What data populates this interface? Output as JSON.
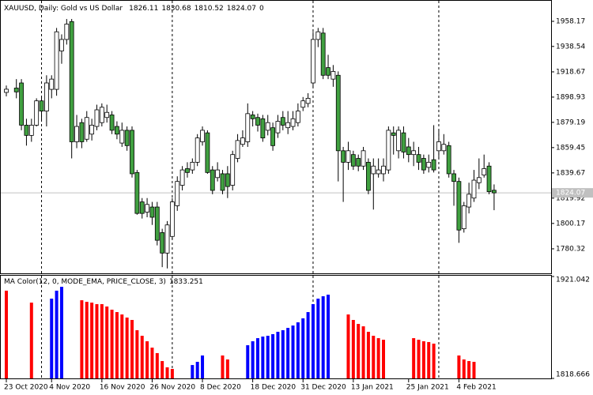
{
  "chart_data": [
    {
      "type": "candlestick",
      "title": "XAUUSD, Daily: Gold vs US Dollar",
      "header_values": [
        1826.11,
        1830.68,
        1810.52,
        1824.07,
        0
      ],
      "categories": [
        "23 Oct 2020",
        null,
        null,
        null,
        null,
        null,
        null,
        null,
        null,
        "4 Nov 2020",
        null,
        null,
        null,
        null,
        null,
        null,
        null,
        null,
        null,
        "16 Nov 2020",
        null,
        null,
        null,
        null,
        null,
        null,
        null,
        null,
        null,
        "26 Nov 2020",
        null,
        null,
        null,
        null,
        null,
        null,
        null,
        null,
        null,
        "8 Dec 2020",
        null,
        null,
        null,
        null,
        null,
        null,
        null,
        null,
        null,
        "18 Dec 2020",
        null,
        null,
        null,
        null,
        null,
        null,
        null,
        null,
        null,
        "31 Dec 2020",
        null,
        null,
        null,
        null,
        null,
        null,
        null,
        null,
        null,
        "13 Jan 2021",
        null,
        null,
        null,
        null,
        null,
        null,
        null,
        null,
        null,
        null,
        "25 Jan 2021",
        null,
        null,
        null,
        null,
        null,
        null,
        null,
        null,
        null,
        "4 Feb 2021",
        null,
        null,
        null,
        null,
        null,
        null,
        null
      ],
      "candles": [
        {
          "o": 1902.6,
          "h": 1908,
          "l": 1899.5,
          "c": 1905.1
        },
        null,
        {
          "o": 1906,
          "h": 1913,
          "l": 1898,
          "c": 1903
        },
        {
          "o": 1910,
          "h": 1913,
          "l": 1873,
          "c": 1877
        },
        {
          "o": 1877,
          "h": 1882,
          "l": 1861,
          "c": 1869
        },
        {
          "o": 1869,
          "h": 1882,
          "l": 1864,
          "c": 1877
        },
        {
          "o": 1877,
          "h": 1898,
          "l": 1876,
          "c": 1896
        },
        {
          "o": 1896,
          "h": 1900,
          "l": 1880,
          "c": 1888
        },
        {
          "o": 1888,
          "h": 1916,
          "l": 1876,
          "c": 1910
        },
        {
          "o": 1905,
          "h": 1916,
          "l": 1898,
          "c": 1913
        },
        {
          "o": 1905,
          "h": 1953,
          "l": 1900,
          "c": 1950
        },
        {
          "o": 1935,
          "h": 1948,
          "l": 1925,
          "c": 1944
        },
        {
          "o": 1944,
          "h": 1960,
          "l": 1940,
          "c": 1956
        },
        {
          "o": 1958,
          "h": 1960,
          "l": 1851,
          "c": 1864
        },
        {
          "o": 1864,
          "h": 1885,
          "l": 1859,
          "c": 1876
        },
        {
          "o": 1879,
          "h": 1882,
          "l": 1859,
          "c": 1864
        },
        {
          "o": 1866,
          "h": 1888,
          "l": 1864,
          "c": 1883
        },
        {
          "o": 1870,
          "h": 1882,
          "l": 1865,
          "c": 1877
        },
        {
          "o": 1876,
          "h": 1893,
          "l": 1873,
          "c": 1889
        },
        {
          "o": 1879,
          "h": 1894,
          "l": 1876,
          "c": 1891
        },
        {
          "o": 1883,
          "h": 1893,
          "l": 1879,
          "c": 1887
        },
        {
          "o": 1885,
          "h": 1888,
          "l": 1870,
          "c": 1873
        },
        {
          "o": 1876,
          "h": 1880,
          "l": 1866,
          "c": 1870
        },
        {
          "o": 1863,
          "h": 1879,
          "l": 1860,
          "c": 1873
        },
        {
          "o": 1873,
          "h": 1876,
          "l": 1857,
          "c": 1861
        },
        {
          "o": 1873,
          "h": 1876,
          "l": 1836,
          "c": 1839
        },
        {
          "o": 1840,
          "h": 1842,
          "l": 1807,
          "c": 1808
        },
        {
          "o": 1817,
          "h": 1820,
          "l": 1804,
          "c": 1808
        },
        {
          "o": 1809,
          "h": 1820,
          "l": 1805,
          "c": 1815
        },
        {
          "o": 1813,
          "h": 1817,
          "l": 1799,
          "c": 1805
        },
        {
          "o": 1813,
          "h": 1817,
          "l": 1783,
          "c": 1787
        },
        {
          "o": 1793,
          "h": 1796,
          "l": 1766,
          "c": 1777
        },
        {
          "o": 1777,
          "h": 1802,
          "l": 1765,
          "c": 1799
        },
        {
          "o": 1790,
          "h": 1820,
          "l": 1788,
          "c": 1817
        },
        {
          "o": 1814,
          "h": 1837,
          "l": 1810,
          "c": 1833
        },
        {
          "o": 1830,
          "h": 1845,
          "l": 1826,
          "c": 1842
        },
        {
          "o": 1843,
          "h": 1848,
          "l": 1836,
          "c": 1840
        },
        {
          "o": 1842,
          "h": 1851,
          "l": 1839,
          "c": 1848
        },
        {
          "o": 1848,
          "h": 1870,
          "l": 1845,
          "c": 1867
        },
        {
          "o": 1864,
          "h": 1876,
          "l": 1861,
          "c": 1873
        },
        {
          "o": 1871,
          "h": 1873,
          "l": 1839,
          "c": 1840
        },
        {
          "o": 1842,
          "h": 1845,
          "l": 1823,
          "c": 1826
        },
        {
          "o": 1836,
          "h": 1848,
          "l": 1833,
          "c": 1842
        },
        {
          "o": 1839,
          "h": 1842,
          "l": 1823,
          "c": 1826
        },
        {
          "o": 1839,
          "h": 1845,
          "l": 1820,
          "c": 1829
        },
        {
          "o": 1830,
          "h": 1857,
          "l": 1826,
          "c": 1854
        },
        {
          "o": 1851,
          "h": 1870,
          "l": 1848,
          "c": 1865
        },
        {
          "o": 1862,
          "h": 1873,
          "l": 1860,
          "c": 1867
        },
        {
          "o": 1864,
          "h": 1894,
          "l": 1860,
          "c": 1886
        },
        {
          "o": 1885,
          "h": 1888,
          "l": 1876,
          "c": 1882
        },
        {
          "o": 1883,
          "h": 1886,
          "l": 1872,
          "c": 1877
        },
        {
          "o": 1882,
          "h": 1885,
          "l": 1864,
          "c": 1867
        },
        {
          "o": 1873,
          "h": 1885,
          "l": 1869,
          "c": 1879
        },
        {
          "o": 1875,
          "h": 1879,
          "l": 1857,
          "c": 1861
        },
        {
          "o": 1871,
          "h": 1885,
          "l": 1867,
          "c": 1880
        },
        {
          "o": 1883,
          "h": 1888,
          "l": 1873,
          "c": 1877
        },
        {
          "o": 1875,
          "h": 1888,
          "l": 1870,
          "c": 1879
        },
        {
          "o": 1876,
          "h": 1888,
          "l": 1873,
          "c": 1882
        },
        {
          "o": 1879,
          "h": 1894,
          "l": 1876,
          "c": 1888
        },
        {
          "o": 1891,
          "h": 1899,
          "l": 1888,
          "c": 1896
        },
        {
          "o": 1894,
          "h": 1902,
          "l": 1891,
          "c": 1898
        },
        {
          "o": 1910,
          "h": 1950,
          "l": 1907,
          "c": 1944
        },
        {
          "o": 1944,
          "h": 1953,
          "l": 1938,
          "c": 1950
        },
        {
          "o": 1949,
          "h": 1953,
          "l": 1913,
          "c": 1916
        },
        {
          "o": 1922,
          "h": 1932,
          "l": 1913,
          "c": 1916
        },
        {
          "o": 1913,
          "h": 1924,
          "l": 1907,
          "c": 1919
        },
        {
          "o": 1916,
          "h": 1919,
          "l": 1833,
          "c": 1857
        },
        {
          "o": 1857,
          "h": 1860,
          "l": 1817,
          "c": 1848
        },
        {
          "o": 1848,
          "h": 1864,
          "l": 1842,
          "c": 1857
        },
        {
          "o": 1854,
          "h": 1857,
          "l": 1842,
          "c": 1845
        },
        {
          "o": 1851,
          "h": 1854,
          "l": 1841,
          "c": 1845
        },
        {
          "o": 1845,
          "h": 1860,
          "l": 1842,
          "c": 1857
        },
        {
          "o": 1848,
          "h": 1851,
          "l": 1823,
          "c": 1826
        },
        {
          "o": 1839,
          "h": 1851,
          "l": 1811,
          "c": 1845
        },
        {
          "o": 1839,
          "h": 1851,
          "l": 1836,
          "c": 1842
        },
        {
          "o": 1839,
          "h": 1851,
          "l": 1833,
          "c": 1845
        },
        {
          "o": 1842,
          "h": 1876,
          "l": 1839,
          "c": 1873
        },
        {
          "o": 1871,
          "h": 1876,
          "l": 1854,
          "c": 1869
        },
        {
          "o": 1857,
          "h": 1876,
          "l": 1851,
          "c": 1873
        },
        {
          "o": 1871,
          "h": 1876,
          "l": 1851,
          "c": 1856
        },
        {
          "o": 1860,
          "h": 1867,
          "l": 1848,
          "c": 1854
        },
        {
          "o": 1854,
          "h": 1864,
          "l": 1845,
          "c": 1857
        },
        {
          "o": 1854,
          "h": 1860,
          "l": 1842,
          "c": 1848
        },
        {
          "o": 1851,
          "h": 1854,
          "l": 1839,
          "c": 1842
        },
        {
          "o": 1844,
          "h": 1854,
          "l": 1840,
          "c": 1848
        },
        {
          "o": 1850,
          "h": 1877,
          "l": 1840,
          "c": 1842
        },
        {
          "o": 1857,
          "h": 1873,
          "l": 1851,
          "c": 1864
        },
        {
          "o": 1857,
          "h": 1870,
          "l": 1854,
          "c": 1862
        },
        {
          "o": 1861,
          "h": 1864,
          "l": 1836,
          "c": 1839
        },
        {
          "o": 1839,
          "h": 1842,
          "l": 1814,
          "c": 1833
        },
        {
          "o": 1833,
          "h": 1836,
          "l": 1785,
          "c": 1795
        },
        {
          "o": 1796,
          "h": 1817,
          "l": 1793,
          "c": 1814
        },
        {
          "o": 1813,
          "h": 1832,
          "l": 1808,
          "c": 1823
        },
        {
          "o": 1820,
          "h": 1842,
          "l": 1817,
          "c": 1834
        },
        {
          "o": 1832,
          "h": 1851,
          "l": 1827,
          "c": 1836
        },
        {
          "o": 1838,
          "h": 1854,
          "l": 1836,
          "c": 1843
        },
        {
          "o": 1845,
          "h": 1848,
          "l": 1823,
          "c": 1825
        },
        {
          "o": 1826.11,
          "h": 1830.68,
          "l": 1810.52,
          "c": 1824.07
        }
      ],
      "up_color": "#ffffff",
      "down_color": "#40a040",
      "ylim": [
        1761.15,
        1974.85
      ],
      "yticks": [
        1958.17,
        1938.54,
        1918.67,
        1898.93,
        1879.19,
        1859.45,
        1839.67,
        1819.92,
        1800.17,
        1780.32
      ],
      "bid": 1824.07,
      "period_separators": [
        7,
        33,
        61,
        86
      ]
    },
    {
      "type": "bar",
      "title": "MA Color(12, 0, MODE_EMA, PRICE_CLOSE, 3)",
      "last_value": 1833.251,
      "series": [
        {
          "color": "#0000ff",
          "values": [
            null,
            null,
            null,
            null,
            null,
            null,
            null,
            null,
            null,
            1898.8,
            1906.8,
            1910.7,
            null,
            null,
            null,
            null,
            null,
            null,
            null,
            null,
            null,
            null,
            null,
            null,
            null,
            null,
            null,
            null,
            null,
            null,
            null,
            null,
            null,
            null,
            null,
            null,
            null,
            1832.1,
            1835.3,
            1841.7,
            null,
            null,
            null,
            null,
            null,
            null,
            null,
            null,
            1852,
            1856,
            1859.1,
            1860.7,
            1861.5,
            1863.1,
            1865.5,
            1867.1,
            1869.4,
            1871.8,
            1875,
            1879,
            1885.3,
            1893.3,
            1898.8,
            1901.2,
            1902.8,
            null,
            null,
            null,
            null,
            null,
            null,
            null,
            null,
            null,
            null,
            null,
            null,
            null,
            null,
            null,
            null,
            null,
            null,
            null,
            null,
            null,
            null,
            null,
            null,
            null,
            null,
            null,
            null,
            null,
            null,
            null,
            null,
            null
          ]
        },
        {
          "color": "#ff0000",
          "values": [
            1906.8,
            null,
            null,
            null,
            null,
            1894.8,
            null,
            null,
            null,
            null,
            null,
            null,
            null,
            null,
            null,
            1897.2,
            1895.6,
            1894.8,
            1893.3,
            1893.3,
            1890.9,
            1887.7,
            1885.3,
            1882.9,
            1879.8,
            1877.4,
            1867.1,
            1861.5,
            1856,
            1849.6,
            1844.1,
            1836.1,
            1829.8,
            1828.2,
            null,
            null,
            null,
            null,
            null,
            null,
            null,
            null,
            null,
            1841.7,
            1837.7,
            null,
            null,
            null,
            null,
            null,
            null,
            null,
            null,
            null,
            null,
            null,
            null,
            null,
            null,
            null,
            null,
            null,
            null,
            null,
            null,
            null,
            null,
            null,
            1882.9,
            1877.4,
            1873.4,
            1871,
            1865.5,
            1861.5,
            1859.1,
            1857.5,
            null,
            null,
            null,
            null,
            null,
            1859.1,
            1857.5,
            1856,
            1855.2,
            1853.6,
            null,
            null,
            null,
            null,
            1841.7,
            1837.7,
            1836.1,
            1835.3,
            null,
            null,
            null,
            null
          ]
        }
      ],
      "ylim": [
        1818.666,
        1921.042
      ],
      "yticks": [
        1921.042,
        1818.666
      ]
    }
  ]
}
